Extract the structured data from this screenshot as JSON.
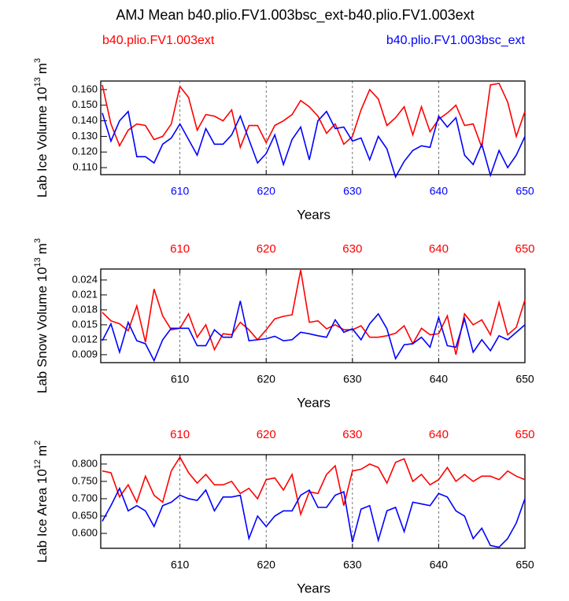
{
  "title": "AMJ Mean b40.plio.FV1.003bsc_ext-b40.plio.FV1.003ext",
  "chart_data": [
    {
      "type": "line",
      "ylabel": {
        "text": "Lab Ice Volume 10",
        "exponent": "13",
        "unit": "m",
        "unit_exponent": "3"
      },
      "xlabel": "Years",
      "x": [
        601,
        602,
        603,
        604,
        605,
        606,
        607,
        608,
        609,
        610,
        611,
        612,
        613,
        614,
        615,
        616,
        617,
        618,
        619,
        620,
        621,
        622,
        623,
        624,
        625,
        626,
        627,
        628,
        629,
        630,
        631,
        632,
        633,
        634,
        635,
        636,
        637,
        638,
        639,
        640,
        641,
        642,
        643,
        644,
        645,
        646,
        647,
        648,
        649,
        650
      ],
      "xlim": [
        601,
        650
      ],
      "xticks": [
        610,
        620,
        630,
        640,
        650
      ],
      "x2ticks": [],
      "x2tick_color": "#ff0000",
      "xtick_color": "#0000ff",
      "ylim": [
        0.1055,
        0.1655
      ],
      "yticks": [
        {
          "value": 0.11,
          "label": "0.110"
        },
        {
          "value": 0.12,
          "label": "0.120"
        },
        {
          "value": 0.13,
          "label": "0.130"
        },
        {
          "value": 0.14,
          "label": "0.140"
        },
        {
          "value": 0.15,
          "label": "0.150"
        },
        {
          "value": 0.16,
          "label": "0.160"
        }
      ],
      "grid": true,
      "series": [
        {
          "name": "b40.plio.FV1.003ext",
          "color": "#ff0000",
          "values": [
            0.163,
            0.138,
            0.124,
            0.134,
            0.138,
            0.137,
            0.128,
            0.13,
            0.138,
            0.162,
            0.155,
            0.134,
            0.144,
            0.143,
            0.14,
            0.147,
            0.123,
            0.137,
            0.137,
            0.126,
            0.137,
            0.14,
            0.144,
            0.153,
            0.149,
            0.143,
            0.132,
            0.138,
            0.125,
            0.13,
            0.147,
            0.16,
            0.154,
            0.137,
            0.142,
            0.149,
            0.131,
            0.149,
            0.133,
            0.141,
            0.145,
            0.15,
            0.137,
            0.138,
            0.123,
            0.163,
            0.164,
            0.152,
            0.13,
            0.146
          ]
        },
        {
          "name": "b40.plio.FV1.003bsc_ext",
          "color": "#0000ff",
          "values": [
            0.145,
            0.127,
            0.14,
            0.146,
            0.117,
            0.117,
            0.113,
            0.125,
            0.129,
            0.138,
            0.128,
            0.118,
            0.135,
            0.125,
            0.125,
            0.131,
            0.143,
            0.128,
            0.113,
            0.119,
            0.131,
            0.112,
            0.128,
            0.136,
            0.115,
            0.14,
            0.146,
            0.135,
            0.136,
            0.127,
            0.129,
            0.115,
            0.13,
            0.122,
            0.104,
            0.114,
            0.121,
            0.124,
            0.123,
            0.143,
            0.136,
            0.142,
            0.118,
            0.112,
            0.125,
            0.105,
            0.121,
            0.11,
            0.118,
            0.13
          ]
        }
      ]
    },
    {
      "type": "line",
      "ylabel": {
        "text": "Lab Snow Volume 10",
        "exponent": "13",
        "unit": "m",
        "unit_exponent": "3"
      },
      "xlabel": "Years",
      "x": [
        601,
        602,
        603,
        604,
        605,
        606,
        607,
        608,
        609,
        610,
        611,
        612,
        613,
        614,
        615,
        616,
        617,
        618,
        619,
        620,
        621,
        622,
        623,
        624,
        625,
        626,
        627,
        628,
        629,
        630,
        631,
        632,
        633,
        634,
        635,
        636,
        637,
        638,
        639,
        640,
        641,
        642,
        643,
        644,
        645,
        646,
        647,
        648,
        649,
        650
      ],
      "xlim": [
        601,
        650
      ],
      "xticks": [
        610,
        620,
        630,
        640,
        650
      ],
      "x2ticks": [
        610,
        620,
        630,
        640,
        650
      ],
      "x2tick_color": "#ff0000",
      "xtick_color": "#000000",
      "ylim": [
        0.0074,
        0.0262
      ],
      "yticks": [
        0.009,
        0.012,
        0.015,
        0.018,
        0.021,
        0.024
      ],
      "grid": true,
      "series": [
        {
          "color": "#ff0000",
          "values": [
            0.0175,
            0.0158,
            0.0152,
            0.0138,
            0.0188,
            0.0115,
            0.0222,
            0.0168,
            0.014,
            0.0143,
            0.0172,
            0.0125,
            0.015,
            0.01,
            0.0132,
            0.013,
            0.0155,
            0.014,
            0.012,
            0.014,
            0.0162,
            0.0167,
            0.017,
            0.026,
            0.0155,
            0.0158,
            0.0142,
            0.015,
            0.014,
            0.014,
            0.0148,
            0.0125,
            0.0125,
            0.0128,
            0.0133,
            0.0148,
            0.0112,
            0.0143,
            0.013,
            0.0132,
            0.0168,
            0.009,
            0.0172,
            0.015,
            0.016,
            0.013,
            0.0195,
            0.013,
            0.0145,
            0.02
          ]
        },
        {
          "color": "#0000ff",
          "values": [
            0.0118,
            0.0152,
            0.0095,
            0.0155,
            0.0118,
            0.0112,
            0.0078,
            0.012,
            0.0143,
            0.0143,
            0.0143,
            0.0108,
            0.0108,
            0.014,
            0.0125,
            0.0125,
            0.0198,
            0.0118,
            0.012,
            0.0122,
            0.0127,
            0.0118,
            0.012,
            0.0135,
            0.0132,
            0.0128,
            0.0125,
            0.016,
            0.0135,
            0.0142,
            0.012,
            0.0152,
            0.0172,
            0.0142,
            0.0082,
            0.011,
            0.0112,
            0.0125,
            0.0105,
            0.0165,
            0.0108,
            0.0105,
            0.0162,
            0.0095,
            0.012,
            0.0098,
            0.0128,
            0.012,
            0.0135,
            0.015
          ]
        }
      ]
    },
    {
      "type": "line",
      "ylabel": {
        "text": "Lab Ice Area 10",
        "exponent": "12",
        "unit": "m",
        "unit_exponent": "2"
      },
      "xlabel": "Years",
      "x": [
        601,
        602,
        603,
        604,
        605,
        606,
        607,
        608,
        609,
        610,
        611,
        612,
        613,
        614,
        615,
        616,
        617,
        618,
        619,
        620,
        621,
        622,
        623,
        624,
        625,
        626,
        627,
        628,
        629,
        630,
        631,
        632,
        633,
        634,
        635,
        636,
        637,
        638,
        639,
        640,
        641,
        642,
        643,
        644,
        645,
        646,
        647,
        648,
        649,
        650
      ],
      "xlim": [
        601,
        650
      ],
      "xticks": [
        610,
        620,
        630,
        640,
        650
      ],
      "x2ticks": [
        610,
        620,
        630,
        640,
        650
      ],
      "x2tick_color": "#ff0000",
      "xtick_color": "#000000",
      "ylim": [
        0.557,
        0.827
      ],
      "yticks": [
        {
          "value": 0.6,
          "label": "0.600"
        },
        {
          "value": 0.65,
          "label": "0.650"
        },
        {
          "value": 0.7,
          "label": "0.700"
        },
        {
          "value": 0.75,
          "label": "0.750"
        },
        {
          "value": 0.8,
          "label": "0.800"
        }
      ],
      "grid": true,
      "series": [
        {
          "color": "#ff0000",
          "values": [
            0.78,
            0.775,
            0.705,
            0.74,
            0.69,
            0.765,
            0.71,
            0.69,
            0.78,
            0.82,
            0.775,
            0.745,
            0.77,
            0.74,
            0.74,
            0.75,
            0.715,
            0.73,
            0.7,
            0.755,
            0.76,
            0.725,
            0.77,
            0.655,
            0.72,
            0.715,
            0.77,
            0.795,
            0.68,
            0.78,
            0.785,
            0.8,
            0.79,
            0.745,
            0.805,
            0.815,
            0.75,
            0.77,
            0.74,
            0.755,
            0.79,
            0.75,
            0.77,
            0.75,
            0.765,
            0.765,
            0.755,
            0.78,
            0.765,
            0.755
          ]
        },
        {
          "color": "#0000ff",
          "values": [
            0.635,
            0.68,
            0.73,
            0.665,
            0.68,
            0.665,
            0.62,
            0.68,
            0.69,
            0.71,
            0.7,
            0.695,
            0.725,
            0.665,
            0.705,
            0.705,
            0.71,
            0.585,
            0.65,
            0.62,
            0.65,
            0.665,
            0.665,
            0.71,
            0.725,
            0.675,
            0.675,
            0.71,
            0.72,
            0.575,
            0.67,
            0.68,
            0.58,
            0.665,
            0.675,
            0.605,
            0.69,
            0.685,
            0.68,
            0.715,
            0.705,
            0.665,
            0.65,
            0.585,
            0.615,
            0.565,
            0.56,
            0.585,
            0.63,
            0.7
          ]
        }
      ]
    }
  ]
}
